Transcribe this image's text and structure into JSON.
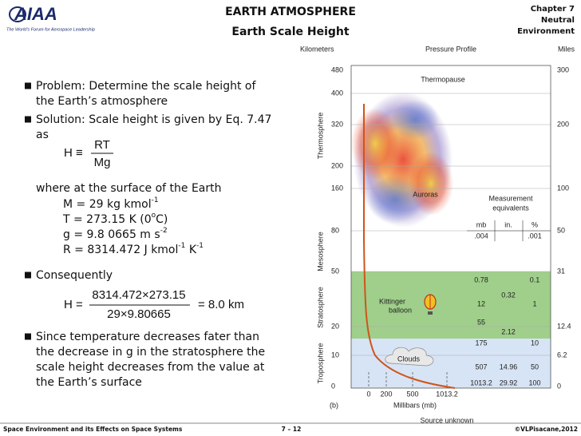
{
  "header": {
    "logo": "AIAA",
    "tagline": "The World's Forum for Aerospace Leadership",
    "title": "EARTH ATMOSPHERE",
    "subtitle": "Earth Scale Height",
    "chapter": [
      "Chapter 7",
      "Neutral",
      "Environment"
    ]
  },
  "body": {
    "bullet1": [
      "Problem: Determine the scale height of",
      "the Earth’s atmosphere"
    ],
    "bullet2": [
      "Solution: Scale height is given by Eq. 7.47",
      "as"
    ],
    "eq1": {
      "lhs": "H",
      "op": "≡",
      "num": "RT",
      "den": "Mg"
    },
    "where": "where at the surface of the Earth",
    "variables": [
      [
        "M = 29 kg kmol",
        "-1"
      ],
      [
        "T = 273.15 K (0",
        "o",
        "C)"
      ],
      [
        "g = 9.8 0665 m s",
        "-2"
      ],
      [
        "R = 8314.472 J kmol",
        "-1",
        " K",
        "-1"
      ]
    ],
    "bullet3": [
      "Consequently"
    ],
    "eq2": {
      "lhs": "H",
      "op": "=",
      "num": "8314.472×273.15",
      "den": "29×9.80665",
      "result": "= 8.0  km"
    },
    "bullet4": [
      "Since temperature decreases fater than",
      "the decrease in g in the stratosphere the",
      "scale height decreases from the value at",
      "the Earth’s surface"
    ]
  },
  "figure": {
    "left_axis": "Kilometers",
    "title": "Pressure Profile",
    "right_axis": "Miles",
    "km_ticks": [
      "480",
      "400",
      "320",
      "200",
      "160",
      "80",
      "50",
      "20",
      "10",
      "0"
    ],
    "mile_ticks": [
      "300",
      "200",
      "100",
      "50",
      "31",
      "12.4",
      "6.2",
      "0"
    ],
    "layers": [
      "Thermosphere",
      "Mesosphere",
      "Stratosphere",
      "Troposphere"
    ],
    "thermopause": "Thermopause",
    "auroras": "Auroras",
    "measurement": [
      "Measurement",
      "equivalents"
    ],
    "columns": [
      "mb",
      "in.",
      "%"
    ],
    "cells": [
      ".004",
      ".001",
      "0.78",
      "0.1",
      "0.32",
      "12",
      "1",
      "55",
      "2.12",
      "175",
      "10",
      "507",
      "14.96",
      "50",
      "1013.2",
      "29.92",
      "100"
    ],
    "balloon": [
      "Kittinger",
      "balloon"
    ],
    "clouds": "Clouds",
    "x_ticks": [
      "0",
      "200",
      "500",
      "1013.2"
    ],
    "x_axis": "Millibars (mb)",
    "panel": "(b)",
    "source": "Source unknown"
  },
  "footer": {
    "left": "Space Environment and its Effects on Space Systems",
    "page": "7 – 12",
    "right": "©VLPisacane,2012"
  }
}
